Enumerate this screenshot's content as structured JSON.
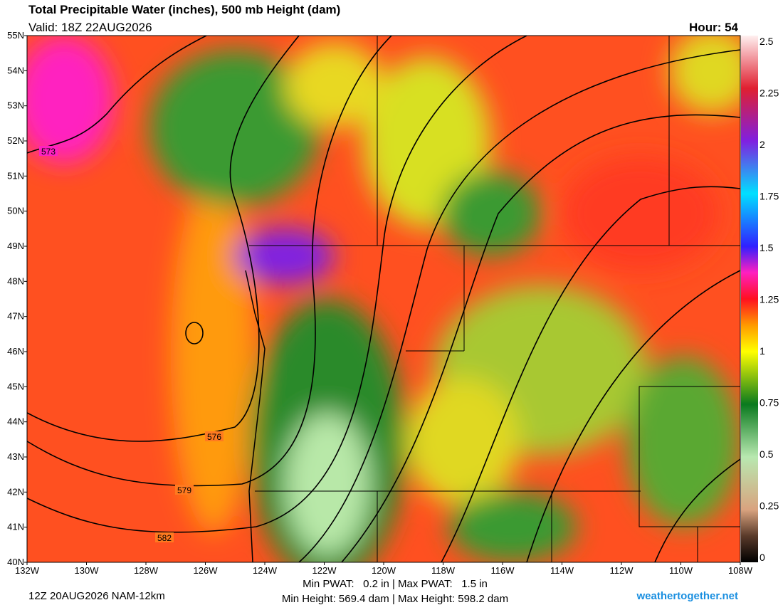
{
  "header": {
    "title": "Total Precipitable Water (inches), 500 mb Height (dam)",
    "valid": "Valid: 18Z 22AUG2026",
    "hour": "Hour: 54"
  },
  "map": {
    "lat_labels": [
      "55N",
      "54N",
      "53N",
      "52N",
      "51N",
      "50N",
      "49N",
      "48N",
      "47N",
      "46N",
      "45N",
      "44N",
      "43N",
      "42N",
      "41N",
      "40N"
    ],
    "lon_labels": [
      "132W",
      "130W",
      "128W",
      "126W",
      "124W",
      "122W",
      "120W",
      "118W",
      "116W",
      "114W",
      "112W",
      "110W",
      "108W"
    ],
    "contour_labels": [
      "573",
      "576",
      "579",
      "582"
    ]
  },
  "colorbar": {
    "ticks": [
      "0",
      "0.25",
      "0.5",
      "0.75",
      "1",
      "1.25",
      "1.5",
      "1.75",
      "2",
      "2.25",
      "2.5"
    ]
  },
  "footer": {
    "run": "12Z 20AUG2026 NAM-12km",
    "pwat": "Min PWAT:   0.2 in | Max PWAT:   1.5 in",
    "height": "Min Height: 569.4 dam | Max Height: 598.2 dam",
    "site": "weathertogether.net"
  }
}
